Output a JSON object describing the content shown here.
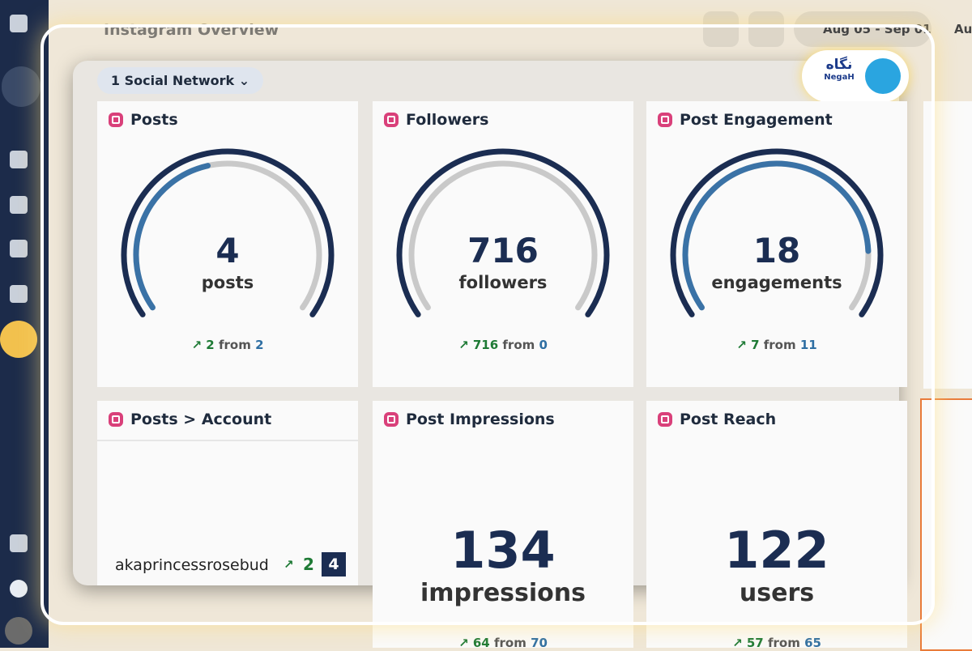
{
  "header": {
    "title": "Instagram Overview",
    "date_range": "Aug 05 - Sep 01",
    "compare": "Aug"
  },
  "filter": "1 Social Network",
  "cards": [
    {
      "title": "Posts",
      "value": 4,
      "unit": "posts",
      "change": 2,
      "from_label": "from",
      "previous": 2
    },
    {
      "title": "Followers",
      "value": 716,
      "unit": "followers",
      "change": 716,
      "from_label": "from",
      "previous": 0
    },
    {
      "title": "Post Engagement",
      "value": 18,
      "unit": "engagements",
      "change": 7,
      "from_label": "from",
      "previous": 11
    }
  ],
  "account_card": {
    "title": "Posts > Account",
    "account": "akaprincessrosebud",
    "change": 2,
    "count": 4
  },
  "big_cards": [
    {
      "title": "Post Impressions",
      "value": 134,
      "unit": "impressions",
      "change": 64,
      "from_label": "from",
      "previous": 70
    },
    {
      "title": "Post Reach",
      "value": 122,
      "unit": "users",
      "change": 57,
      "from_label": "from",
      "previous": 65
    }
  ],
  "watermark": {
    "text": "نگاه",
    "brand": "NegaH"
  }
}
